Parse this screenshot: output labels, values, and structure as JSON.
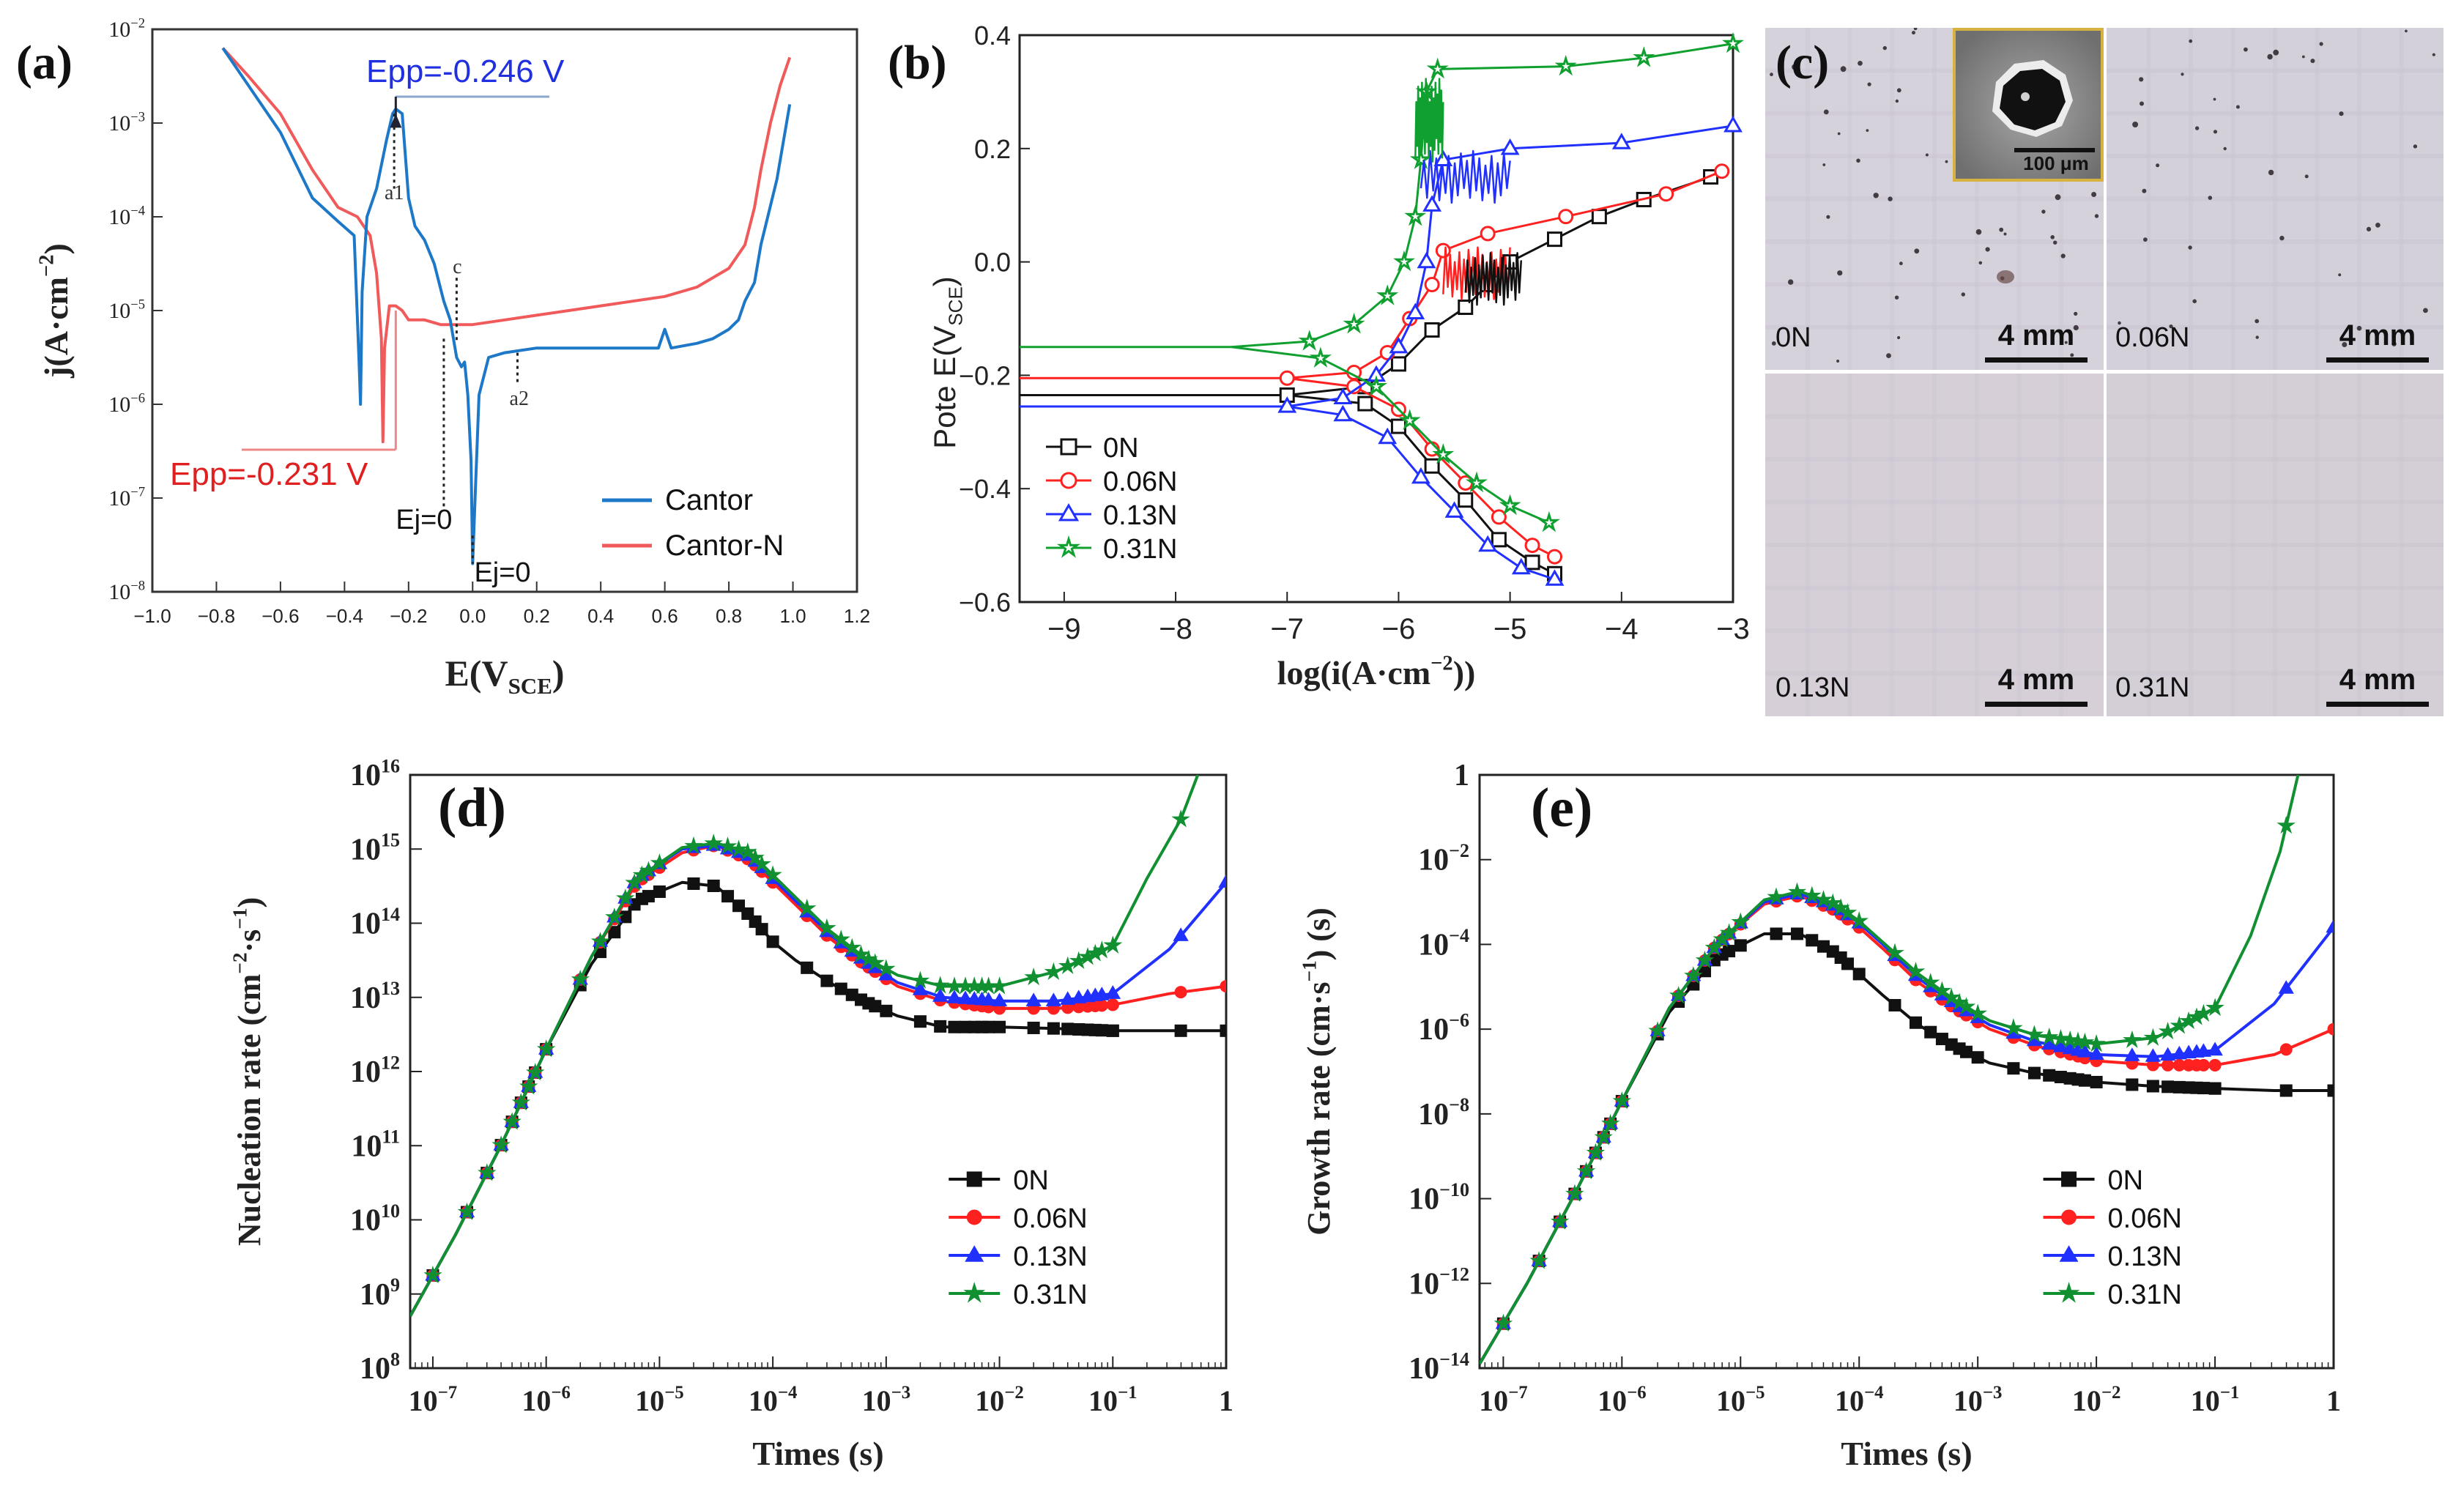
{
  "panels": {
    "a": {
      "letter": "(a)"
    },
    "b": {
      "letter": "(b)"
    },
    "c": {
      "letter": "(c)"
    },
    "d": {
      "letter": "(d)"
    },
    "e": {
      "letter": "(e)"
    }
  },
  "micrographs": {
    "inset_scale": "100 μm",
    "items": [
      {
        "label": "0N",
        "scale": "4 mm",
        "pits": 60
      },
      {
        "label": "0.06N",
        "scale": "4 mm",
        "pits": 40
      },
      {
        "label": "0.13N",
        "scale": "4 mm",
        "pits": 0
      },
      {
        "label": "0.31N",
        "scale": "4 mm",
        "pits": 0
      }
    ]
  },
  "chart_data": [
    {
      "id": "a",
      "type": "line",
      "title": "",
      "xlabel": "E(V_SCE)",
      "ylabel": "j(A·cm^-2)",
      "xlim": [
        -1.0,
        1.2
      ],
      "ylim_log10": [
        -8,
        -2
      ],
      "x_ticks": [
        "−1.0",
        "−0.8",
        "−0.6",
        "−0.4",
        "−0.2",
        "0.0",
        "0.2",
        "0.4",
        "0.6",
        "0.8",
        "1.0",
        "1.2"
      ],
      "y_ticks": [
        "10^-8",
        "10^-7",
        "10^-6",
        "10^-5",
        "10^-4",
        "10^-3",
        "10^-2"
      ],
      "legend": [
        "Cantor",
        "Cantor-N"
      ],
      "colors": [
        "#1e78c8",
        "#f05a5a"
      ],
      "annotations": [
        "Epp=-0.246 V",
        "Epp=-0.231 V",
        "a1",
        "a2",
        "c",
        "Ej=0",
        "Ej=0"
      ],
      "series": [
        {
          "name": "Cantor",
          "x": [
            -0.78,
            -0.7,
            -0.6,
            -0.5,
            -0.42,
            -0.37,
            -0.355,
            -0.35,
            -0.345,
            -0.33,
            -0.3,
            -0.27,
            -0.25,
            -0.24,
            -0.22,
            -0.2,
            -0.18,
            -0.15,
            -0.12,
            -0.09,
            -0.07,
            -0.05,
            -0.035,
            -0.025,
            -0.015,
            -0.005,
            0.0,
            0.01,
            0.02,
            0.05,
            0.1,
            0.2,
            0.3,
            0.4,
            0.5,
            0.58,
            0.6,
            0.62,
            0.7,
            0.75,
            0.8,
            0.83,
            0.85,
            0.88,
            0.9,
            0.95,
            0.99
          ],
          "log_y": [
            -2.2,
            -2.6,
            -3.1,
            -3.8,
            -4.05,
            -4.2,
            -5.5,
            -6.0,
            -4.8,
            -4.0,
            -3.7,
            -3.2,
            -2.9,
            -2.85,
            -2.9,
            -3.8,
            -4.1,
            -4.25,
            -4.5,
            -4.9,
            -5.1,
            -5.5,
            -5.6,
            -5.55,
            -5.9,
            -6.6,
            -7.7,
            -6.8,
            -5.9,
            -5.5,
            -5.45,
            -5.4,
            -5.4,
            -5.4,
            -5.4,
            -5.4,
            -5.2,
            -5.4,
            -5.35,
            -5.3,
            -5.2,
            -5.1,
            -4.9,
            -4.7,
            -4.3,
            -3.6,
            -2.8
          ]
        },
        {
          "name": "Cantor-N",
          "x": [
            -0.78,
            -0.7,
            -0.6,
            -0.5,
            -0.42,
            -0.36,
            -0.32,
            -0.3,
            -0.285,
            -0.28,
            -0.275,
            -0.26,
            -0.24,
            -0.22,
            -0.2,
            -0.15,
            -0.1,
            -0.05,
            0.0,
            0.1,
            0.2,
            0.3,
            0.4,
            0.5,
            0.6,
            0.7,
            0.8,
            0.85,
            0.88,
            0.9,
            0.93,
            0.96,
            0.99
          ],
          "log_y": [
            -2.2,
            -2.5,
            -2.9,
            -3.5,
            -3.9,
            -4.0,
            -4.2,
            -4.6,
            -5.3,
            -6.4,
            -5.4,
            -4.95,
            -4.95,
            -5.0,
            -5.1,
            -5.1,
            -5.15,
            -5.15,
            -5.15,
            -5.1,
            -5.05,
            -5.0,
            -4.95,
            -4.9,
            -4.85,
            -4.75,
            -4.55,
            -4.3,
            -3.9,
            -3.5,
            -3.0,
            -2.6,
            -2.3
          ]
        }
      ]
    },
    {
      "id": "b",
      "type": "line",
      "title": "",
      "xlabel": "log(i(A·cm^-2))",
      "ylabel": "Pote E(V_SCE)",
      "xlim": [
        -9.4,
        -3
      ],
      "ylim": [
        -0.6,
        0.4
      ],
      "x_ticks": [
        "−9",
        "−8",
        "−7",
        "−6",
        "−5",
        "−4",
        "−3"
      ],
      "y_ticks": [
        "−0.6",
        "−0.4",
        "−0.2",
        "0.0",
        "0.2",
        "0.4"
      ],
      "legend": [
        "0N",
        "0.06N",
        "0.13N",
        "0.31N"
      ],
      "colors": [
        "#111111",
        "#ff2020",
        "#2030ff",
        "#10a030"
      ],
      "series": [
        {
          "name": "0N",
          "anodic": [
            [
              -9.4,
              -0.235
            ],
            [
              -7.0,
              -0.235
            ],
            [
              -6.3,
              -0.22
            ],
            [
              -6.0,
              -0.18
            ],
            [
              -5.7,
              -0.12
            ],
            [
              -5.4,
              -0.08
            ],
            [
              -5.2,
              -0.04
            ],
            [
              -5.0,
              0.0
            ],
            [
              -4.6,
              0.04
            ],
            [
              -4.2,
              0.08
            ],
            [
              -3.8,
              0.11
            ],
            [
              -3.2,
              0.15
            ]
          ],
          "cathodic": [
            [
              -7.0,
              -0.235
            ],
            [
              -6.3,
              -0.25
            ],
            [
              -6.0,
              -0.29
            ],
            [
              -5.7,
              -0.36
            ],
            [
              -5.4,
              -0.42
            ],
            [
              -5.1,
              -0.49
            ],
            [
              -4.8,
              -0.53
            ],
            [
              -4.6,
              -0.55
            ]
          ]
        },
        {
          "name": "0.06N",
          "anodic": [
            [
              -9.4,
              -0.205
            ],
            [
              -7.0,
              -0.205
            ],
            [
              -6.4,
              -0.195
            ],
            [
              -6.1,
              -0.16
            ],
            [
              -5.9,
              -0.1
            ],
            [
              -5.7,
              -0.04
            ],
            [
              -5.6,
              0.02
            ],
            [
              -5.2,
              0.05
            ],
            [
              -4.5,
              0.08
            ],
            [
              -3.6,
              0.12
            ],
            [
              -3.1,
              0.16
            ]
          ],
          "cathodic": [
            [
              -7.0,
              -0.205
            ],
            [
              -6.4,
              -0.22
            ],
            [
              -6.0,
              -0.26
            ],
            [
              -5.7,
              -0.33
            ],
            [
              -5.4,
              -0.39
            ],
            [
              -5.1,
              -0.45
            ],
            [
              -4.8,
              -0.5
            ],
            [
              -4.6,
              -0.52
            ]
          ]
        },
        {
          "name": "0.13N",
          "anodic": [
            [
              -9.4,
              -0.255
            ],
            [
              -7.0,
              -0.255
            ],
            [
              -6.5,
              -0.24
            ],
            [
              -6.2,
              -0.2
            ],
            [
              -6.0,
              -0.15
            ],
            [
              -5.85,
              -0.09
            ],
            [
              -5.75,
              0.0
            ],
            [
              -5.7,
              0.1
            ],
            [
              -5.6,
              0.18
            ],
            [
              -5.0,
              0.2
            ],
            [
              -4.0,
              0.21
            ],
            [
              -3.0,
              0.24
            ]
          ],
          "cathodic": [
            [
              -7.0,
              -0.255
            ],
            [
              -6.5,
              -0.27
            ],
            [
              -6.1,
              -0.31
            ],
            [
              -5.8,
              -0.38
            ],
            [
              -5.5,
              -0.44
            ],
            [
              -5.2,
              -0.5
            ],
            [
              -4.9,
              -0.54
            ],
            [
              -4.6,
              -0.56
            ]
          ]
        },
        {
          "name": "0.31N",
          "anodic": [
            [
              -9.4,
              -0.15
            ],
            [
              -7.5,
              -0.15
            ],
            [
              -6.8,
              -0.14
            ],
            [
              -6.4,
              -0.11
            ],
            [
              -6.1,
              -0.06
            ],
            [
              -5.95,
              0.0
            ],
            [
              -5.85,
              0.08
            ],
            [
              -5.8,
              0.18
            ],
            [
              -5.75,
              0.3
            ],
            [
              -5.65,
              0.34
            ],
            [
              -4.5,
              0.345
            ],
            [
              -3.8,
              0.36
            ],
            [
              -3.0,
              0.385
            ]
          ],
          "cathodic": [
            [
              -7.5,
              -0.15
            ],
            [
              -6.7,
              -0.17
            ],
            [
              -6.2,
              -0.22
            ],
            [
              -5.9,
              -0.28
            ],
            [
              -5.6,
              -0.34
            ],
            [
              -5.3,
              -0.39
            ],
            [
              -5.0,
              -0.43
            ],
            [
              -4.65,
              -0.46
            ]
          ]
        }
      ]
    },
    {
      "id": "d",
      "type": "line",
      "title": "",
      "xlabel": "Times (s)",
      "ylabel": "Nucleation rate (cm^-2·s^-1)",
      "xlim_log10": [
        -7.2,
        0
      ],
      "ylim_log10": [
        8,
        16
      ],
      "x_ticks": [
        "10^-7",
        "10^-6",
        "10^-5",
        "10^-4",
        "10^-3",
        "10^-2",
        "10^-1",
        "1"
      ],
      "y_ticks": [
        "10^8",
        "10^9",
        "10^10",
        "10^11",
        "10^12",
        "10^13",
        "10^14",
        "10^15",
        "10^16"
      ],
      "legend": [
        "0N",
        "0.06N",
        "0.13N",
        "0.31N"
      ],
      "colors": [
        "#111111",
        "#ff2020",
        "#2030ff",
        "#109030"
      ],
      "series": [
        {
          "name": "0N",
          "log_x": [
            -7.2,
            -6.8,
            -6.4,
            -6.0,
            -5.6,
            -5.2,
            -4.8,
            -4.5,
            -4.2,
            -4.0,
            -3.8,
            -3.5,
            -3.2,
            -2.9,
            -2.5,
            -2.0,
            -1.5,
            -1.0,
            -0.5,
            0.0
          ],
          "log_y": [
            8.7,
            9.8,
            11.0,
            12.3,
            13.45,
            14.3,
            14.55,
            14.5,
            14.1,
            13.75,
            13.5,
            13.2,
            12.95,
            12.75,
            12.6,
            12.6,
            12.58,
            12.55,
            12.55,
            12.55
          ]
        },
        {
          "name": "0.06N",
          "log_x": [
            -7.2,
            -6.8,
            -6.4,
            -6.0,
            -5.6,
            -5.2,
            -4.8,
            -4.5,
            -4.2,
            -4.0,
            -3.8,
            -3.5,
            -3.2,
            -2.9,
            -2.5,
            -2.0,
            -1.5,
            -1.0,
            -0.5,
            0.0
          ],
          "log_y": [
            8.7,
            9.8,
            11.0,
            12.3,
            13.55,
            14.55,
            14.95,
            15.05,
            14.85,
            14.55,
            14.25,
            13.8,
            13.45,
            13.15,
            12.95,
            12.85,
            12.85,
            12.9,
            13.05,
            13.15
          ]
        },
        {
          "name": "0.13N",
          "log_x": [
            -7.2,
            -6.8,
            -6.4,
            -6.0,
            -5.6,
            -5.2,
            -4.8,
            -4.5,
            -4.2,
            -4.0,
            -3.8,
            -3.5,
            -3.2,
            -2.9,
            -2.5,
            -2.0,
            -1.5,
            -1.0,
            -0.5,
            0.0
          ],
          "log_y": [
            8.7,
            9.8,
            11.0,
            12.3,
            13.55,
            14.6,
            15.0,
            15.05,
            14.9,
            14.6,
            14.3,
            13.85,
            13.5,
            13.2,
            13.0,
            12.95,
            12.95,
            13.05,
            13.65,
            14.55
          ]
        },
        {
          "name": "0.31N",
          "log_x": [
            -7.2,
            -6.8,
            -6.4,
            -6.0,
            -5.6,
            -5.2,
            -4.8,
            -4.5,
            -4.2,
            -4.0,
            -3.8,
            -3.5,
            -3.2,
            -2.9,
            -2.5,
            -2.0,
            -1.5,
            -1.0,
            -0.7,
            -0.4,
            -0.25
          ],
          "log_y": [
            8.7,
            9.8,
            11.0,
            12.3,
            13.55,
            14.6,
            15.02,
            15.08,
            14.95,
            14.65,
            14.35,
            13.9,
            13.55,
            13.3,
            13.15,
            13.15,
            13.35,
            13.7,
            14.6,
            15.4,
            16.0
          ]
        }
      ]
    },
    {
      "id": "e",
      "type": "line",
      "title": "",
      "xlabel": "Times (s)",
      "ylabel": "Growth rate (cm·s^-1) (s)",
      "xlim_log10": [
        -7.2,
        0
      ],
      "ylim_log10": [
        -14,
        0
      ],
      "x_ticks": [
        "10^-7",
        "10^-6",
        "10^-5",
        "10^-4",
        "10^-3",
        "10^-2",
        "10^-1",
        "1"
      ],
      "y_ticks": [
        "10^-14",
        "10^-12",
        "10^-10",
        "10^-8",
        "10^-6",
        "10^-4",
        "10^-2",
        "1"
      ],
      "legend": [
        "0N",
        "0.06N",
        "0.13N",
        "0.31N"
      ],
      "colors": [
        "#111111",
        "#ff2020",
        "#2030ff",
        "#109030"
      ],
      "series": [
        {
          "name": "0N",
          "log_x": [
            -7.2,
            -6.8,
            -6.4,
            -6.0,
            -5.6,
            -5.2,
            -4.8,
            -4.5,
            -4.2,
            -4.0,
            -3.8,
            -3.5,
            -3.2,
            -2.9,
            -2.5,
            -2.0,
            -1.5,
            -1.0,
            -0.5,
            0.0
          ],
          "log_y": [
            -13.9,
            -12.0,
            -9.9,
            -7.7,
            -5.6,
            -4.3,
            -3.75,
            -3.75,
            -4.2,
            -4.7,
            -5.2,
            -5.9,
            -6.4,
            -6.8,
            -7.05,
            -7.25,
            -7.35,
            -7.4,
            -7.45,
            -7.45
          ]
        },
        {
          "name": "0.06N",
          "log_x": [
            -7.2,
            -6.8,
            -6.4,
            -6.0,
            -5.6,
            -5.2,
            -4.8,
            -4.5,
            -4.2,
            -4.0,
            -3.8,
            -3.5,
            -3.2,
            -2.9,
            -2.5,
            -2.0,
            -1.5,
            -1.0,
            -0.5,
            0.0
          ],
          "log_y": [
            -13.9,
            -12.0,
            -9.9,
            -7.7,
            -5.5,
            -4.0,
            -3.05,
            -2.85,
            -3.2,
            -3.6,
            -4.1,
            -4.9,
            -5.5,
            -6.0,
            -6.4,
            -6.75,
            -6.85,
            -6.85,
            -6.6,
            -6.0
          ]
        },
        {
          "name": "0.13N",
          "log_x": [
            -7.2,
            -6.8,
            -6.4,
            -6.0,
            -5.6,
            -5.2,
            -4.8,
            -4.5,
            -4.2,
            -4.0,
            -3.8,
            -3.5,
            -3.2,
            -2.9,
            -2.5,
            -2.0,
            -1.5,
            -1.0,
            -0.5,
            0.0
          ],
          "log_y": [
            -13.9,
            -12.0,
            -9.9,
            -7.7,
            -5.5,
            -4.0,
            -3.0,
            -2.8,
            -3.1,
            -3.5,
            -4.0,
            -4.8,
            -5.4,
            -5.9,
            -6.3,
            -6.6,
            -6.65,
            -6.5,
            -5.4,
            -3.6
          ]
        },
        {
          "name": "0.31N",
          "log_x": [
            -7.2,
            -6.8,
            -6.4,
            -6.0,
            -5.6,
            -5.2,
            -4.8,
            -4.5,
            -4.2,
            -4.0,
            -3.8,
            -3.5,
            -3.2,
            -2.9,
            -2.5,
            -2.0,
            -1.5,
            -1.0,
            -0.7,
            -0.45,
            -0.3
          ],
          "log_y": [
            -13.9,
            -12.0,
            -9.9,
            -7.7,
            -5.5,
            -4.0,
            -2.95,
            -2.75,
            -3.05,
            -3.45,
            -3.95,
            -4.7,
            -5.3,
            -5.8,
            -6.15,
            -6.35,
            -6.2,
            -5.5,
            -3.8,
            -1.8,
            0.0
          ]
        }
      ]
    }
  ]
}
